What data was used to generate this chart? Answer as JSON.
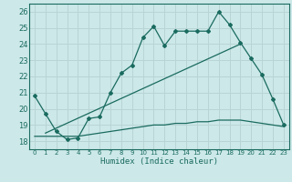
{
  "xlabel": "Humidex (Indice chaleur)",
  "bg_color": "#cce8e8",
  "grid_color": "#b8d4d4",
  "line_color": "#1a6b60",
  "xlim": [
    -0.5,
    23.5
  ],
  "ylim": [
    17.5,
    26.5
  ],
  "xticks": [
    0,
    1,
    2,
    3,
    4,
    5,
    6,
    7,
    8,
    9,
    10,
    11,
    12,
    13,
    14,
    15,
    16,
    17,
    18,
    19,
    20,
    21,
    22,
    23
  ],
  "yticks": [
    18,
    19,
    20,
    21,
    22,
    23,
    24,
    25,
    26
  ],
  "line1_x": [
    0,
    1,
    2,
    3,
    4,
    5,
    6,
    7,
    8,
    9,
    10,
    11,
    12,
    13,
    14,
    15,
    16,
    17,
    18,
    19,
    20,
    21,
    22,
    23
  ],
  "line1_y": [
    20.8,
    19.7,
    18.6,
    18.1,
    18.2,
    19.4,
    19.5,
    21.0,
    22.2,
    22.7,
    24.4,
    25.1,
    23.9,
    24.8,
    24.8,
    24.8,
    24.8,
    26.0,
    25.2,
    24.1,
    23.1,
    22.1,
    20.6,
    19.0
  ],
  "line2_x": [
    0,
    1,
    2,
    3,
    4,
    5,
    6,
    7,
    8,
    9,
    10,
    11,
    12,
    13,
    14,
    15,
    16,
    17,
    18,
    19,
    20,
    21,
    22,
    23
  ],
  "line2_y": [
    18.3,
    18.3,
    18.3,
    18.3,
    18.3,
    18.4,
    18.5,
    18.6,
    18.7,
    18.8,
    18.9,
    19.0,
    19.0,
    19.1,
    19.1,
    19.2,
    19.2,
    19.3,
    19.3,
    19.3,
    19.2,
    19.1,
    19.0,
    18.9
  ],
  "line3_x": [
    1,
    19
  ],
  "line3_y": [
    18.5,
    24.0
  ]
}
